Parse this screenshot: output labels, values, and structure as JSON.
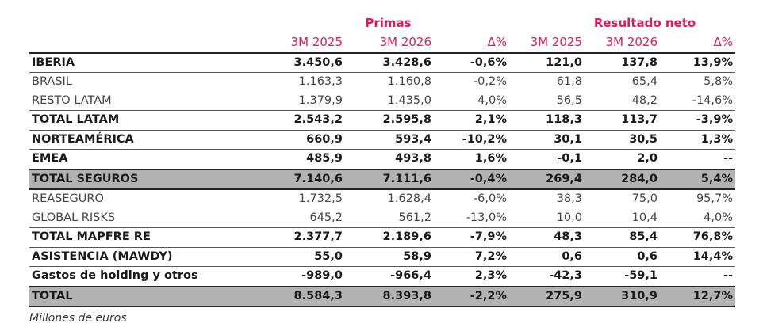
{
  "header": {
    "group_primas": "Primas",
    "group_resultado": "Resultado neto",
    "columns": [
      "3M 2025",
      "3M 2026",
      "Δ%",
      "3M 2025",
      "3M 2026",
      "Δ%"
    ]
  },
  "rows": [
    {
      "label": "IBERIA",
      "values": [
        "3.450,6",
        "3.428,6",
        "-0,6%",
        "121,0",
        "137,8",
        "13,9%"
      ]
    },
    {
      "label": "BRASIL",
      "values": [
        "1.163,3",
        "1.160,8",
        "-0,2%",
        "61,8",
        "65,4",
        "5,8%"
      ]
    },
    {
      "label": "RESTO LATAM",
      "values": [
        "1.379,9",
        "1.435,0",
        "4,0%",
        "56,5",
        "48,2",
        "-14,6%"
      ]
    },
    {
      "label": "TOTAL LATAM",
      "values": [
        "2.543,2",
        "2.595,8",
        "2,1%",
        "118,3",
        "113,7",
        "-3,9%"
      ]
    },
    {
      "label": "NORTEAMÉRICA",
      "values": [
        "660,9",
        "593,4",
        "-10,2%",
        "30,1",
        "30,5",
        "1,3%"
      ]
    },
    {
      "label": "EMEA",
      "values": [
        "485,9",
        "493,8",
        "1,6%",
        "-0,1",
        "2,0",
        "--"
      ]
    },
    {
      "label": "TOTAL SEGUROS",
      "values": [
        "7.140,6",
        "7.111,6",
        "-0,4%",
        "269,4",
        "284,0",
        "5,4%"
      ]
    },
    {
      "label": "REASEGURO",
      "values": [
        "1.732,5",
        "1.628,4",
        "-6,0%",
        "38,3",
        "75,0",
        "95,7%"
      ]
    },
    {
      "label": "GLOBAL RISKS",
      "values": [
        "645,2",
        "561,2",
        "-13,0%",
        "10,0",
        "10,4",
        "4,0%"
      ]
    },
    {
      "label": "TOTAL MAPFRE RE",
      "values": [
        "2.377,7",
        "2.189,6",
        "-7,9%",
        "48,3",
        "85,4",
        "76,8%"
      ]
    },
    {
      "label": "ASISTENCIA (MAWDY)",
      "values": [
        "55,0",
        "58,9",
        "7,2%",
        "0,6",
        "0,6",
        "14,4%"
      ]
    },
    {
      "label": "Gastos de holding y otros",
      "values": [
        "-989,0",
        "-966,4",
        "2,3%",
        "-42,3",
        "-59,1",
        "--"
      ]
    },
    {
      "label": "TOTAL",
      "values": [
        "8.584,3",
        "8.393,8",
        "-2,2%",
        "275,9",
        "310,9",
        "12,7%"
      ]
    }
  ],
  "footnote": "Millones de euros",
  "colors": {
    "accent": "#d81e5b",
    "total_row": "#b3b3b3"
  }
}
